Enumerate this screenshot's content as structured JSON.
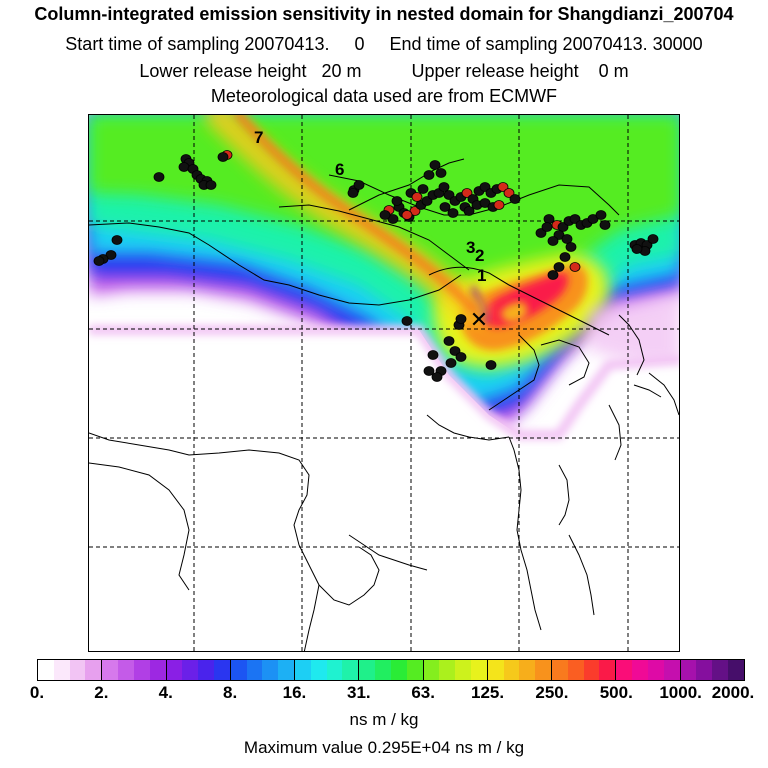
{
  "header": {
    "title": "Column-integrated emission sensitivity in nested domain for Shangdianzi_200704",
    "sampling_line": "Start time of sampling 20070413.     0     End time of sampling 20070413. 30000",
    "release_line": "Lower release height   20 m          Upper release height    0 m",
    "met_line": "Meteorological data used are from ECMWF"
  },
  "map": {
    "trajectory_labels": [
      "7",
      "6",
      "3",
      "2",
      "1"
    ],
    "receptor_marker": "✕",
    "colors": {
      "point_black": "#111111",
      "point_red": "#d42a1a",
      "coastline": "#000000",
      "grid": "#000000"
    }
  },
  "legend": {
    "colors": [
      "#ffffff",
      "#fbe8fb",
      "#f2c4f4",
      "#e7a0ee",
      "#d679ec",
      "#c45be8",
      "#b13fe5",
      "#9d28e2",
      "#8a1fe5",
      "#6b20e8",
      "#4a23ec",
      "#2a36f0",
      "#1c55f2",
      "#1b74f3",
      "#1c91f4",
      "#1db0f4",
      "#1dcff4",
      "#1fe9ee",
      "#1ff2d0",
      "#1ff2aa",
      "#1ff08a",
      "#21ee60",
      "#2aec36",
      "#55ec22",
      "#84ee1e",
      "#abf01d",
      "#cdf21c",
      "#e8f21c",
      "#f4e41b",
      "#f6c91b",
      "#f7ae1b",
      "#f8921c",
      "#f97a1e",
      "#fa5e22",
      "#fa3c2c",
      "#fa1a48",
      "#fa0d78",
      "#f00a96",
      "#de0aa6",
      "#c50fae",
      "#a611ac",
      "#850f9e",
      "#641086",
      "#460e6a"
    ],
    "tick_labels": [
      "0.",
      "2.",
      "4.",
      "8.",
      "16.",
      "31.",
      "63.",
      "125.",
      "250.",
      "500.",
      "1000.",
      "2000."
    ],
    "unit": "ns m / kg",
    "max_value": "Maximum value  0.295E+04 ns m / kg"
  }
}
